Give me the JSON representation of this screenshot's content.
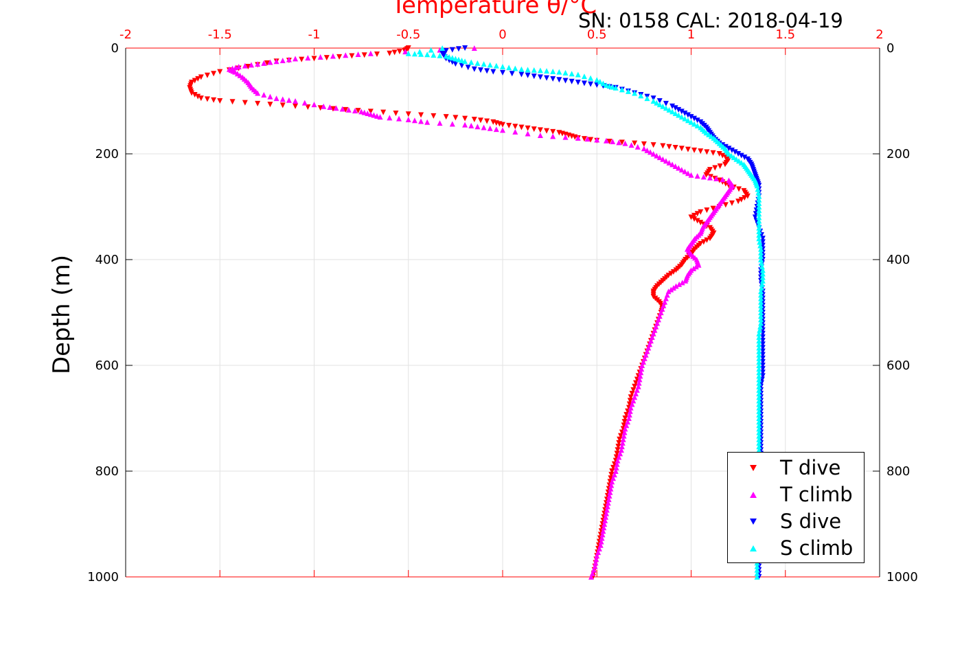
{
  "chart_data": {
    "type": "scatter",
    "title": "Temperature θ/°C",
    "subtitle": "SN: 0158  CAL: 2018-04-19",
    "xlabel": "Temperature θ/°C",
    "ylabel": "Depth (m)",
    "xlim": [
      -2,
      2
    ],
    "ylim": [
      0,
      1000
    ],
    "y_reversed": true,
    "x_axis_position": "top",
    "x_ticks": [
      "-2",
      "-1.5",
      "-1",
      "-0.5",
      "0",
      "0.5",
      "1",
      "1.5",
      "2"
    ],
    "y_ticks": [
      "0",
      "200",
      "400",
      "600",
      "800",
      "1000"
    ],
    "grid": true,
    "legend_position": "bottom-right",
    "series": [
      {
        "name": "T dive",
        "color": "#ff0000",
        "marker": "triangle-down",
        "points": [
          [
            -0.5,
            0
          ],
          [
            -0.52,
            5
          ],
          [
            -0.6,
            10
          ],
          [
            -0.8,
            15
          ],
          [
            -1.0,
            20
          ],
          [
            -1.2,
            25
          ],
          [
            -1.35,
            35
          ],
          [
            -1.5,
            45
          ],
          [
            -1.6,
            55
          ],
          [
            -1.65,
            65
          ],
          [
            -1.66,
            75
          ],
          [
            -1.65,
            85
          ],
          [
            -1.6,
            95
          ],
          [
            -1.5,
            100
          ],
          [
            -1.3,
            105
          ],
          [
            -1.1,
            110
          ],
          [
            -0.9,
            115
          ],
          [
            -0.7,
            120
          ],
          [
            -0.5,
            125
          ],
          [
            -0.3,
            130
          ],
          [
            -0.15,
            135
          ],
          [
            -0.05,
            140
          ],
          [
            0.0,
            145
          ],
          [
            0.1,
            150
          ],
          [
            0.2,
            155
          ],
          [
            0.3,
            160
          ],
          [
            0.35,
            165
          ],
          [
            0.4,
            170
          ],
          [
            0.5,
            175
          ],
          [
            0.7,
            180
          ],
          [
            0.85,
            185
          ],
          [
            0.95,
            190
          ],
          [
            1.05,
            195
          ],
          [
            1.15,
            200
          ],
          [
            1.2,
            210
          ],
          [
            1.18,
            220
          ],
          [
            1.1,
            230
          ],
          [
            1.08,
            240
          ],
          [
            1.15,
            250
          ],
          [
            1.2,
            260
          ],
          [
            1.28,
            270
          ],
          [
            1.3,
            280
          ],
          [
            1.25,
            290
          ],
          [
            1.15,
            300
          ],
          [
            1.05,
            310
          ],
          [
            1.0,
            320
          ],
          [
            1.05,
            330
          ],
          [
            1.1,
            340
          ],
          [
            1.12,
            350
          ],
          [
            1.1,
            360
          ],
          [
            1.05,
            370
          ],
          [
            1.02,
            380
          ],
          [
            1.0,
            390
          ],
          [
            0.97,
            400
          ],
          [
            0.95,
            410
          ],
          [
            0.92,
            420
          ],
          [
            0.88,
            430
          ],
          [
            0.85,
            440
          ],
          [
            0.82,
            450
          ],
          [
            0.8,
            460
          ],
          [
            0.8,
            470
          ],
          [
            0.83,
            480
          ],
          [
            0.85,
            490
          ],
          [
            0.84,
            500
          ],
          [
            0.82,
            520
          ],
          [
            0.8,
            540
          ],
          [
            0.78,
            560
          ],
          [
            0.76,
            580
          ],
          [
            0.74,
            600
          ],
          [
            0.72,
            620
          ],
          [
            0.7,
            640
          ],
          [
            0.68,
            660
          ],
          [
            0.67,
            680
          ],
          [
            0.65,
            700
          ],
          [
            0.64,
            720
          ],
          [
            0.62,
            740
          ],
          [
            0.61,
            760
          ],
          [
            0.6,
            780
          ],
          [
            0.58,
            800
          ],
          [
            0.57,
            820
          ],
          [
            0.56,
            840
          ],
          [
            0.55,
            860
          ],
          [
            0.54,
            880
          ],
          [
            0.53,
            900
          ],
          [
            0.52,
            920
          ],
          [
            0.51,
            940
          ],
          [
            0.5,
            960
          ],
          [
            0.49,
            980
          ],
          [
            0.48,
            1000
          ]
        ]
      },
      {
        "name": "T climb",
        "color": "#ff00ff",
        "marker": "triangle-up",
        "points": [
          [
            -0.15,
            0
          ],
          [
            -0.7,
            10
          ],
          [
            -0.9,
            15
          ],
          [
            -1.1,
            20
          ],
          [
            -1.2,
            25
          ],
          [
            -1.3,
            30
          ],
          [
            -1.4,
            35
          ],
          [
            -1.45,
            40
          ],
          [
            -1.42,
            45
          ],
          [
            -1.38,
            55
          ],
          [
            -1.35,
            65
          ],
          [
            -1.33,
            75
          ],
          [
            -1.3,
            85
          ],
          [
            -1.2,
            95
          ],
          [
            -1.1,
            100
          ],
          [
            -0.95,
            110
          ],
          [
            -0.85,
            115
          ],
          [
            -0.75,
            120
          ],
          [
            -0.7,
            125
          ],
          [
            -0.65,
            130
          ],
          [
            -0.5,
            135
          ],
          [
            -0.4,
            140
          ],
          [
            -0.2,
            145
          ],
          [
            -0.1,
            150
          ],
          [
            0.0,
            155
          ],
          [
            0.2,
            165
          ],
          [
            0.4,
            170
          ],
          [
            0.55,
            175
          ],
          [
            0.65,
            180
          ],
          [
            0.75,
            190
          ],
          [
            0.8,
            200
          ],
          [
            0.85,
            210
          ],
          [
            0.9,
            220
          ],
          [
            0.95,
            230
          ],
          [
            1.0,
            240
          ],
          [
            1.1,
            245
          ],
          [
            1.2,
            250
          ],
          [
            1.22,
            260
          ],
          [
            1.2,
            270
          ],
          [
            1.18,
            280
          ],
          [
            1.16,
            290
          ],
          [
            1.14,
            300
          ],
          [
            1.12,
            310
          ],
          [
            1.1,
            320
          ],
          [
            1.08,
            330
          ],
          [
            1.06,
            340
          ],
          [
            1.05,
            350
          ],
          [
            1.02,
            360
          ],
          [
            1.0,
            370
          ],
          [
            0.98,
            380
          ],
          [
            1.0,
            390
          ],
          [
            1.03,
            400
          ],
          [
            1.04,
            410
          ],
          [
            1.0,
            420
          ],
          [
            0.98,
            430
          ],
          [
            0.97,
            440
          ],
          [
            0.92,
            450
          ],
          [
            0.88,
            460
          ],
          [
            0.86,
            480
          ],
          [
            0.84,
            500
          ],
          [
            0.82,
            520
          ],
          [
            0.8,
            540
          ],
          [
            0.78,
            560
          ],
          [
            0.76,
            580
          ],
          [
            0.74,
            600
          ],
          [
            0.73,
            620
          ],
          [
            0.72,
            640
          ],
          [
            0.7,
            660
          ],
          [
            0.68,
            680
          ],
          [
            0.67,
            700
          ],
          [
            0.65,
            720
          ],
          [
            0.64,
            740
          ],
          [
            0.63,
            760
          ],
          [
            0.61,
            780
          ],
          [
            0.6,
            800
          ],
          [
            0.58,
            820
          ],
          [
            0.57,
            840
          ],
          [
            0.56,
            860
          ],
          [
            0.55,
            880
          ],
          [
            0.54,
            900
          ],
          [
            0.53,
            920
          ],
          [
            0.52,
            940
          ],
          [
            0.5,
            960
          ],
          [
            0.49,
            980
          ],
          [
            0.47,
            1000
          ]
        ]
      },
      {
        "name": "S dive",
        "color": "#0000ff",
        "marker": "triangle-down",
        "points": [
          [
            -0.2,
            0
          ],
          [
            -0.3,
            5
          ],
          [
            -0.32,
            10
          ],
          [
            -0.3,
            20
          ],
          [
            -0.25,
            30
          ],
          [
            -0.15,
            40
          ],
          [
            -0.05,
            45
          ],
          [
            0.1,
            50
          ],
          [
            0.2,
            55
          ],
          [
            0.3,
            60
          ],
          [
            0.4,
            65
          ],
          [
            0.5,
            70
          ],
          [
            0.6,
            75
          ],
          [
            0.7,
            85
          ],
          [
            0.8,
            95
          ],
          [
            0.9,
            110
          ],
          [
            0.95,
            120
          ],
          [
            1.0,
            130
          ],
          [
            1.05,
            140
          ],
          [
            1.08,
            150
          ],
          [
            1.1,
            160
          ],
          [
            1.12,
            170
          ],
          [
            1.15,
            180
          ],
          [
            1.2,
            190
          ],
          [
            1.25,
            200
          ],
          [
            1.3,
            210
          ],
          [
            1.32,
            220
          ],
          [
            1.33,
            230
          ],
          [
            1.34,
            240
          ],
          [
            1.35,
            250
          ],
          [
            1.36,
            260
          ],
          [
            1.36,
            280
          ],
          [
            1.35,
            300
          ],
          [
            1.34,
            320
          ],
          [
            1.36,
            340
          ],
          [
            1.38,
            360
          ],
          [
            1.38,
            380
          ],
          [
            1.38,
            400
          ],
          [
            1.37,
            420
          ],
          [
            1.37,
            440
          ],
          [
            1.38,
            460
          ],
          [
            1.38,
            480
          ],
          [
            1.38,
            500
          ],
          [
            1.38,
            520
          ],
          [
            1.38,
            540
          ],
          [
            1.38,
            560
          ],
          [
            1.38,
            580
          ],
          [
            1.38,
            600
          ],
          [
            1.38,
            620
          ],
          [
            1.37,
            640
          ],
          [
            1.37,
            660
          ],
          [
            1.37,
            680
          ],
          [
            1.37,
            700
          ],
          [
            1.37,
            720
          ],
          [
            1.37,
            740
          ],
          [
            1.37,
            760
          ],
          [
            1.37,
            780
          ],
          [
            1.37,
            800
          ],
          [
            1.37,
            820
          ],
          [
            1.37,
            840
          ],
          [
            1.37,
            860
          ],
          [
            1.37,
            880
          ],
          [
            1.37,
            900
          ],
          [
            1.37,
            920
          ],
          [
            1.36,
            940
          ],
          [
            1.36,
            960
          ],
          [
            1.36,
            980
          ],
          [
            1.36,
            1000
          ]
        ]
      },
      {
        "name": "S climb",
        "color": "#00ffff",
        "marker": "triangle-up",
        "points": [
          [
            -0.32,
            0
          ],
          [
            -0.5,
            10
          ],
          [
            -0.4,
            12
          ],
          [
            -0.3,
            15
          ],
          [
            -0.25,
            20
          ],
          [
            -0.2,
            25
          ],
          [
            -0.1,
            30
          ],
          [
            0.0,
            35
          ],
          [
            0.1,
            40
          ],
          [
            0.2,
            42
          ],
          [
            0.3,
            45
          ],
          [
            0.4,
            50
          ],
          [
            0.5,
            60
          ],
          [
            0.55,
            70
          ],
          [
            0.6,
            75
          ],
          [
            0.7,
            85
          ],
          [
            0.8,
            100
          ],
          [
            0.85,
            110
          ],
          [
            0.9,
            120
          ],
          [
            0.95,
            130
          ],
          [
            1.0,
            140
          ],
          [
            1.05,
            150
          ],
          [
            1.08,
            160
          ],
          [
            1.12,
            170
          ],
          [
            1.15,
            180
          ],
          [
            1.18,
            190
          ],
          [
            1.2,
            200
          ],
          [
            1.24,
            210
          ],
          [
            1.28,
            220
          ],
          [
            1.3,
            230
          ],
          [
            1.32,
            240
          ],
          [
            1.34,
            250
          ],
          [
            1.35,
            260
          ],
          [
            1.36,
            280
          ],
          [
            1.36,
            300
          ],
          [
            1.36,
            320
          ],
          [
            1.36,
            340
          ],
          [
            1.36,
            360
          ],
          [
            1.37,
            380
          ],
          [
            1.37,
            400
          ],
          [
            1.38,
            420
          ],
          [
            1.38,
            440
          ],
          [
            1.37,
            460
          ],
          [
            1.37,
            480
          ],
          [
            1.37,
            500
          ],
          [
            1.37,
            520
          ],
          [
            1.36,
            540
          ],
          [
            1.36,
            560
          ],
          [
            1.36,
            580
          ],
          [
            1.36,
            600
          ],
          [
            1.36,
            620
          ],
          [
            1.36,
            640
          ],
          [
            1.36,
            660
          ],
          [
            1.36,
            680
          ],
          [
            1.36,
            700
          ],
          [
            1.36,
            720
          ],
          [
            1.36,
            740
          ],
          [
            1.36,
            760
          ],
          [
            1.36,
            780
          ],
          [
            1.36,
            800
          ],
          [
            1.36,
            820
          ],
          [
            1.36,
            840
          ],
          [
            1.36,
            860
          ],
          [
            1.36,
            880
          ],
          [
            1.36,
            900
          ],
          [
            1.36,
            920
          ],
          [
            1.36,
            940
          ],
          [
            1.35,
            960
          ],
          [
            1.35,
            980
          ],
          [
            1.35,
            1000
          ]
        ]
      }
    ]
  }
}
